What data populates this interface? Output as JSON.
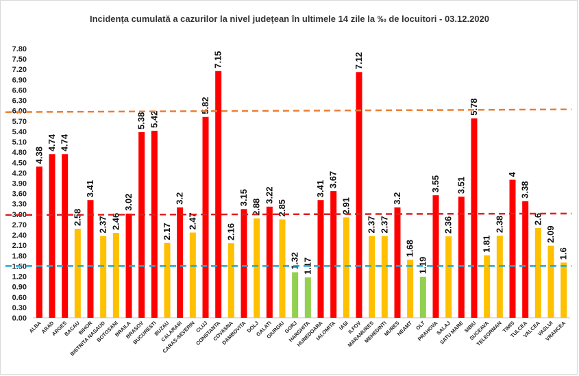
{
  "chart_data": {
    "type": "bar",
    "title": "Incidența cumulată a cazurilor la nivel județean în ultimele 14 zile la ‰ de locuitori - 03.12.2020",
    "xlabel": "",
    "ylabel": "",
    "ylim": [
      0,
      7.8
    ],
    "ytick_step": 0.3,
    "grid": false,
    "legend": "none",
    "categories": [
      "ALBA",
      "ARAD",
      "ARGES",
      "BACAU",
      "BIHOR",
      "BISTRITA NASAUD",
      "BOTOSANI",
      "BRAILA",
      "BRASOV",
      "BUCURESTI",
      "BUZAU",
      "CALARASI",
      "CARAS-SEVERIN",
      "CLUJ",
      "CONSTANTA",
      "COVASNA",
      "DAMBOVITA",
      "DOLJ",
      "GALATI",
      "GIURGIU",
      "GORJ",
      "HARGHITA",
      "HUNEDOARA",
      "IALOMITA",
      "IASI",
      "ILFOV",
      "MARAMURES",
      "MEHEDINTI",
      "MURES",
      "NEAMT",
      "OLT",
      "PRAHOVA",
      "SALAJ",
      "SATU MARE",
      "SIBIU",
      "SUCEAVA",
      "TELEORMAN",
      "TIMIS",
      "TULCEA",
      "VALCEA",
      "VASLUI",
      "VRANCEA"
    ],
    "values": [
      4.38,
      4.74,
      4.74,
      2.58,
      3.41,
      2.37,
      2.46,
      3.02,
      5.38,
      5.42,
      2.17,
      3.2,
      2.47,
      5.82,
      7.15,
      2.16,
      3.15,
      2.88,
      3.22,
      2.85,
      1.32,
      1.17,
      3.41,
      3.67,
      2.91,
      7.12,
      2.37,
      2.37,
      3.2,
      1.68,
      1.19,
      3.55,
      2.36,
      3.51,
      5.78,
      1.81,
      2.38,
      4,
      3.38,
      2.6,
      2.09,
      1.6
    ],
    "value_labels": [
      "4.38",
      "4.74",
      "4.74",
      "2.58",
      "3.41",
      "2.37",
      "2.46",
      "3.02",
      "5.38",
      "5.42",
      "2.17",
      "3.2",
      "2.47",
      "5.82",
      "7.15",
      "2.16",
      "3.15",
      "2.88",
      "3.22",
      "2.85",
      "1.32",
      "1.17",
      "3.41",
      "3.67",
      "2.91",
      "7.12",
      "2.37",
      "2.37",
      "3.2",
      "1.68",
      "1.19",
      "3.55",
      "2.36",
      "3.51",
      "5.78",
      "1.81",
      "2.38",
      "4",
      "3.38",
      "2.6",
      "2.09",
      "1.6"
    ],
    "colors": {
      "red": "#ff0000",
      "yellow": "#ffc000",
      "green": "#92d050"
    },
    "color_rule": "value >= 3 red, 1.5 <= value < 3 yellow, value < 1.5 green",
    "thresholds": [
      {
        "value": 6.0,
        "color": "#ed7d31",
        "style": "dashed"
      },
      {
        "value": 3.0,
        "color": "#e02020",
        "style": "dashed"
      },
      {
        "value": 1.5,
        "color": "#1fa8d8",
        "style": "dashed"
      }
    ]
  }
}
